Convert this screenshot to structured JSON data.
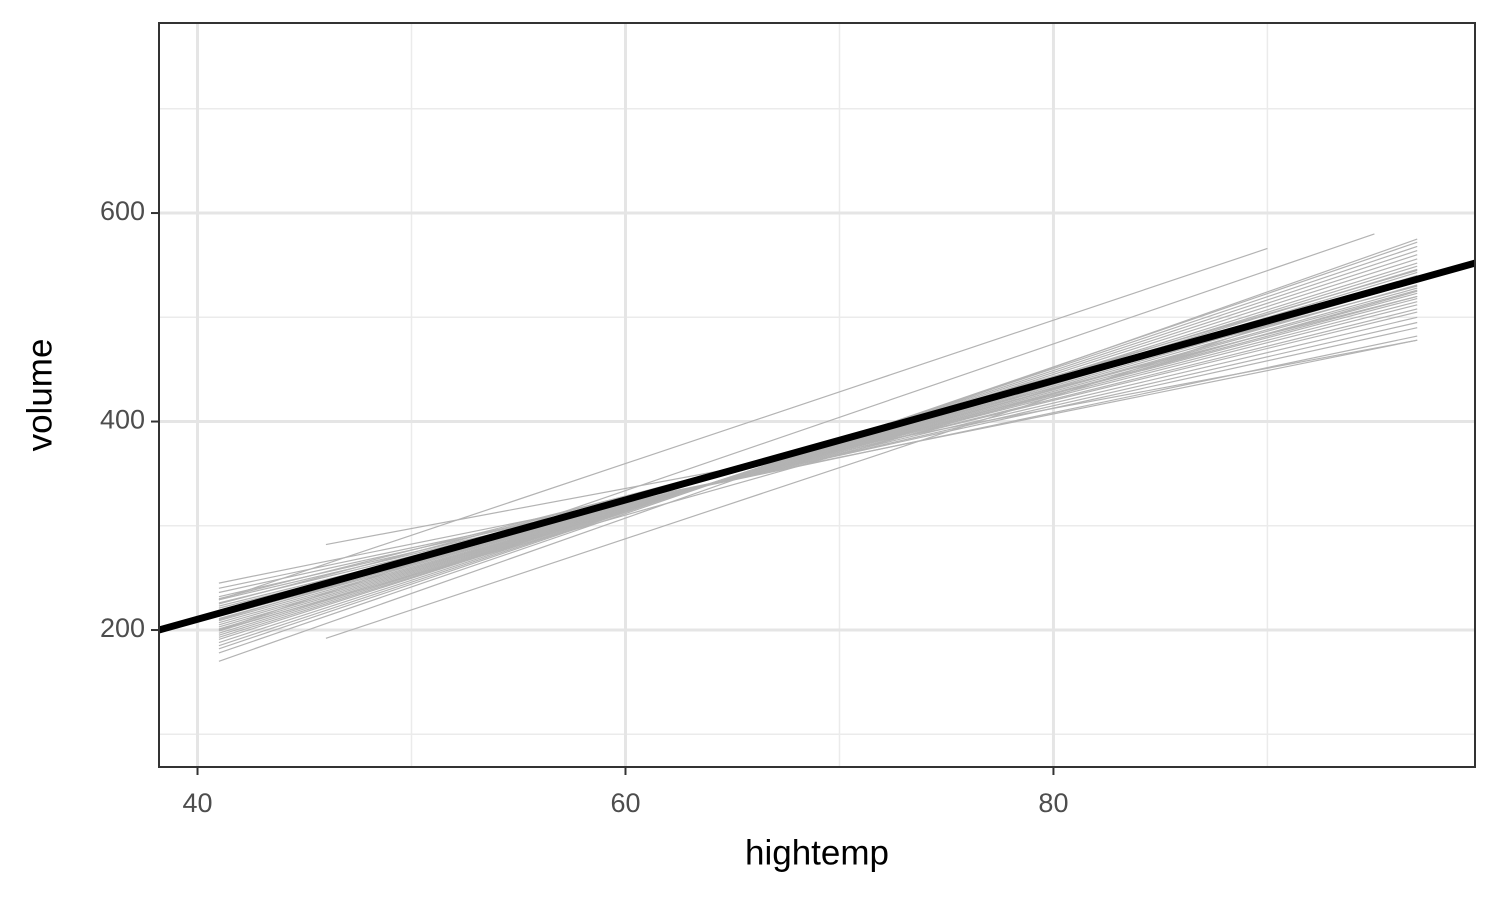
{
  "chart_data": {
    "type": "line",
    "x_label": "hightemp",
    "y_label": "volume",
    "xlim": [
      38.2,
      99.7
    ],
    "ylim": [
      68.6,
      782.3
    ],
    "xticks": [
      40,
      60,
      80
    ],
    "yticks": [
      200,
      400,
      600
    ],
    "xminor": [
      50,
      70,
      90
    ],
    "yminor": [
      100,
      300,
      500,
      700
    ],
    "grid": true,
    "series_color": "#b3b3b3",
    "series": [
      {
        "x": [
          41,
          97
        ],
        "values": [
          245,
          478
        ]
      },
      {
        "x": [
          41,
          97
        ],
        "values": [
          240,
          482
        ]
      },
      {
        "x": [
          41,
          97
        ],
        "values": [
          236,
          490
        ]
      },
      {
        "x": [
          41,
          97
        ],
        "values": [
          232,
          495
        ]
      },
      {
        "x": [
          41,
          97
        ],
        "values": [
          229,
          500
        ]
      },
      {
        "x": [
          41,
          97
        ],
        "values": [
          226,
          505
        ]
      },
      {
        "x": [
          41,
          97
        ],
        "values": [
          223,
          508
        ]
      },
      {
        "x": [
          41,
          97
        ],
        "values": [
          221,
          512
        ]
      },
      {
        "x": [
          41,
          97
        ],
        "values": [
          219,
          515
        ]
      },
      {
        "x": [
          41,
          97
        ],
        "values": [
          217,
          518
        ]
      },
      {
        "x": [
          41,
          97
        ],
        "values": [
          215,
          520
        ]
      },
      {
        "x": [
          41,
          97
        ],
        "values": [
          213,
          523
        ]
      },
      {
        "x": [
          41,
          97
        ],
        "values": [
          211,
          526
        ]
      },
      {
        "x": [
          41,
          97
        ],
        "values": [
          209,
          528
        ]
      },
      {
        "x": [
          41,
          97
        ],
        "values": [
          207,
          531
        ]
      },
      {
        "x": [
          41,
          97
        ],
        "values": [
          205,
          534
        ]
      },
      {
        "x": [
          41,
          97
        ],
        "values": [
          203,
          537
        ]
      },
      {
        "x": [
          41,
          97
        ],
        "values": [
          201,
          540
        ]
      },
      {
        "x": [
          41,
          97
        ],
        "values": [
          199,
          543
        ]
      },
      {
        "x": [
          41,
          97
        ],
        "values": [
          197,
          546
        ]
      },
      {
        "x": [
          41,
          97
        ],
        "values": [
          195,
          549
        ]
      },
      {
        "x": [
          41,
          97
        ],
        "values": [
          193,
          552
        ]
      },
      {
        "x": [
          41,
          97
        ],
        "values": [
          191,
          556
        ]
      },
      {
        "x": [
          41,
          97
        ],
        "values": [
          188,
          560
        ]
      },
      {
        "x": [
          41,
          97
        ],
        "values": [
          185,
          564
        ]
      },
      {
        "x": [
          41,
          97
        ],
        "values": [
          182,
          568
        ]
      },
      {
        "x": [
          41,
          97
        ],
        "values": [
          178,
          572
        ]
      },
      {
        "x": [
          41,
          97
        ],
        "values": [
          170,
          575
        ]
      },
      {
        "x": [
          41,
          97
        ],
        "values": [
          230,
          520
        ]
      },
      {
        "x": [
          41,
          97
        ],
        "values": [
          210,
          545
        ]
      },
      {
        "x": [
          41,
          97
        ],
        "values": [
          225,
          530
        ]
      },
      {
        "x": [
          41,
          97
        ],
        "values": [
          200,
          525
        ]
      },
      {
        "x": [
          41,
          90
        ],
        "values": [
          229,
          566
        ]
      },
      {
        "x": [
          46,
          97
        ],
        "values": [
          192,
          540
        ]
      },
      {
        "x": [
          46,
          97
        ],
        "values": [
          282,
          478
        ]
      },
      {
        "x": [
          41,
          95
        ],
        "values": [
          200,
          580
        ]
      }
    ],
    "fit": {
      "x": [
        38.2,
        99.7
      ],
      "values": [
        200,
        552
      ],
      "color": "#000000"
    }
  }
}
